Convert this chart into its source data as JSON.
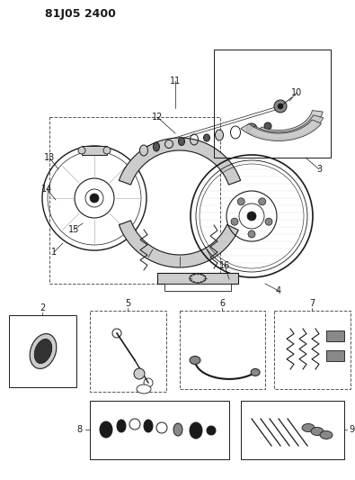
{
  "title": "81J05 2400",
  "bg_color": "#ffffff",
  "line_color": "#1a1a1a",
  "gray": "#888888",
  "lightgray": "#cccccc",
  "darkgray": "#555555"
}
